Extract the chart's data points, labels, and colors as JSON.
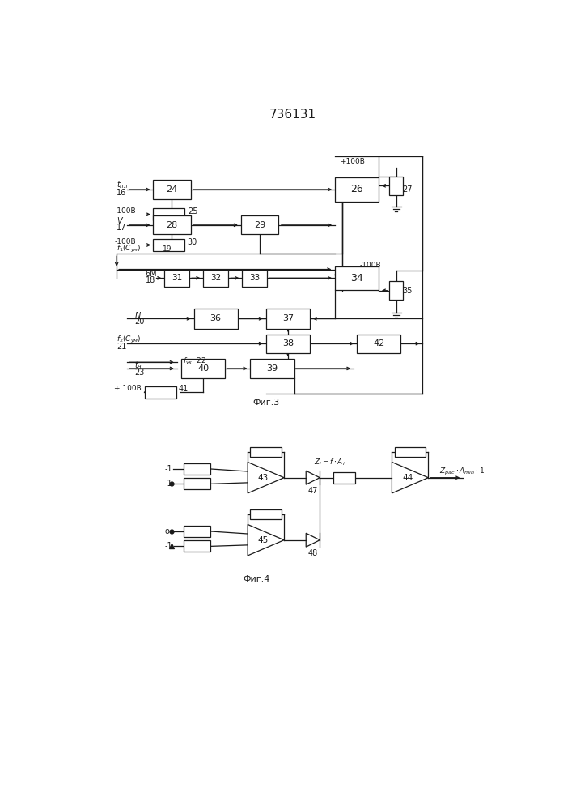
{
  "title": "736131",
  "bg_color": "#ffffff",
  "lc": "#1a1a1a",
  "lw": 0.9,
  "fig3_label": "Фиг.3",
  "fig4_label": "Фиг.4"
}
